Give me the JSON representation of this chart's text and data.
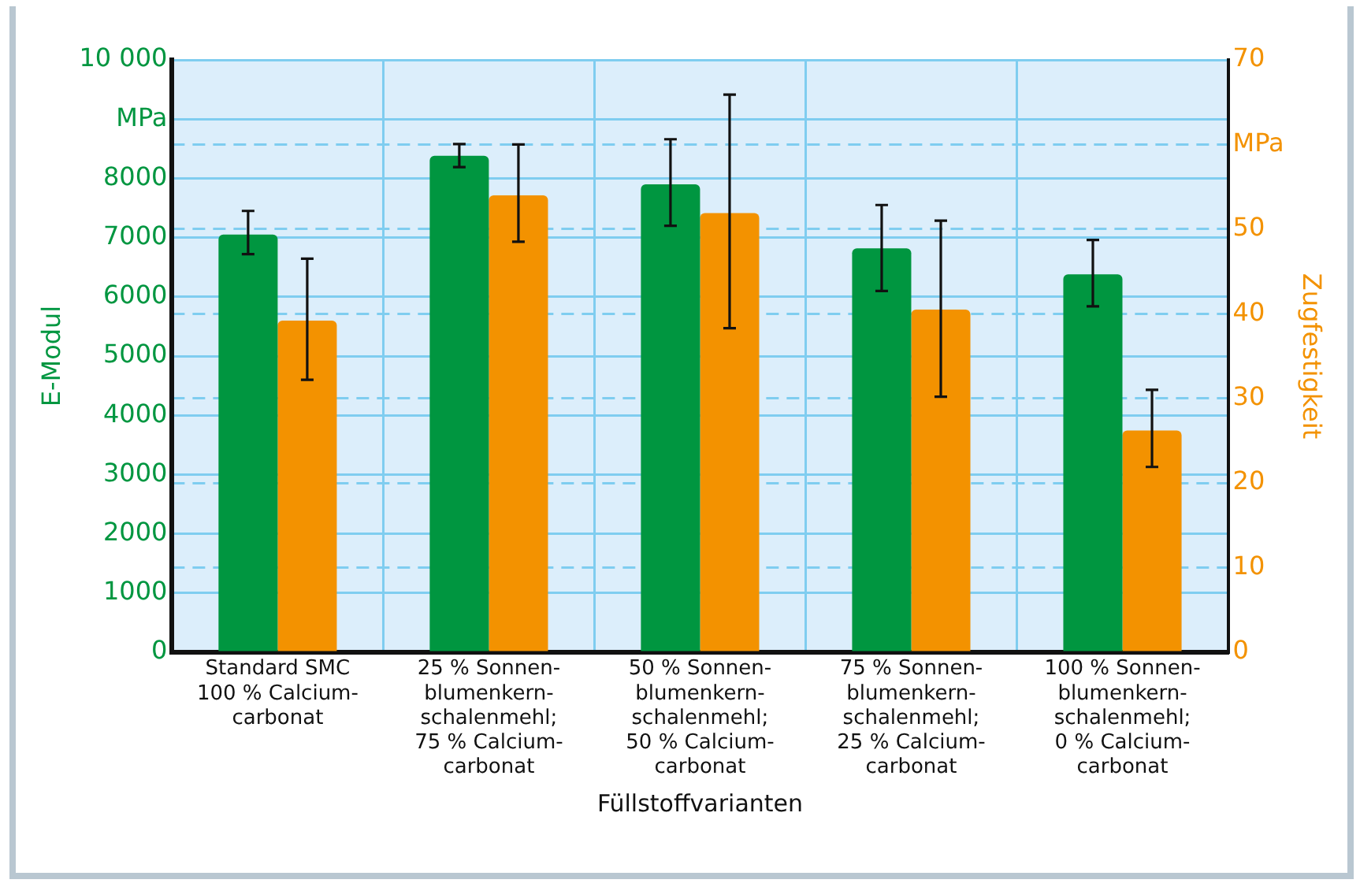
{
  "chart_data": {
    "type": "bar",
    "xlabel": "Füllstoffvarianten",
    "ylabel": "E-Modul",
    "y2label": "Zugfestigkeit",
    "categories": [
      "Standard SMC\n100 % Calcium-\ncarbonat",
      "25 % Sonnen-\nblumenkern-\nschalenmehl;\n75 % Calcium-\ncarbonat",
      "50 % Sonnen-\nblumenkern-\nschalenmehl;\n50 % Calcium-\ncarbonat",
      "75 % Sonnen-\nblumenkern-\nschalenmehl;\n25 % Calcium-\ncarbonat",
      "100 % Sonnen-\nblumenkern-\nschalenmehl;\n0 % Calcium-\ncarbonat"
    ],
    "series": [
      {
        "color": "#009640",
        "values": [
          7050,
          8380,
          7900,
          6820,
          6380
        ],
        "errors": [
          [
            6720,
            7450
          ],
          [
            8190,
            8580
          ],
          [
            7200,
            8660
          ],
          [
            6100,
            7550
          ],
          [
            5840,
            6960
          ]
        ]
      },
      {
        "color": "#f39200",
        "axis": "y2",
        "values": [
          39.2,
          54.0,
          51.9,
          40.5,
          26.2
        ],
        "errors": [
          [
            32.2,
            46.5
          ],
          [
            48.5,
            60.0
          ],
          [
            38.3,
            65.9
          ],
          [
            30.2,
            51.0
          ],
          [
            21.9,
            31.0
          ]
        ]
      }
    ],
    "ylim": [
      0,
      10000
    ],
    "yticks": [
      0,
      1000,
      2000,
      3000,
      4000,
      5000,
      6000,
      7000,
      8000,
      {
        "value": 9000,
        "label": "MPa"
      },
      {
        "value": 10000,
        "label": "10 000"
      }
    ],
    "y2lim": [
      0,
      70
    ],
    "y2ticks": [
      0,
      10,
      20,
      30,
      40,
      50,
      {
        "value": 60,
        "label": "MPa"
      },
      70
    ],
    "grid": true,
    "legend": false
  }
}
